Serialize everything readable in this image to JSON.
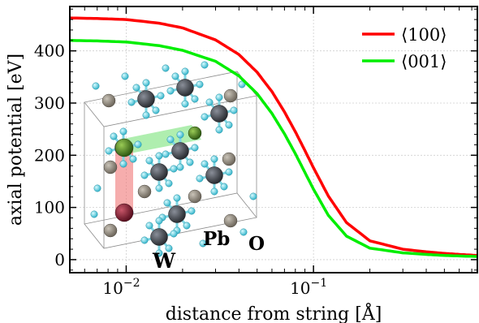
{
  "chart_data": {
    "type": "line",
    "xlabel": "distance from string [Å]",
    "ylabel": "axial potential [eV]",
    "xscale": "log",
    "xlim": [
      0.005,
      0.75
    ],
    "ylim": [
      -25,
      485
    ],
    "grid": true,
    "legend_position": "top-right",
    "x_ticks": [
      {
        "value": 0.01,
        "base": "10",
        "exp": "−2"
      },
      {
        "value": 0.1,
        "base": "10",
        "exp": "−1"
      }
    ],
    "y_ticks": [
      {
        "value": 0,
        "label": "0"
      },
      {
        "value": 100,
        "label": "100"
      },
      {
        "value": 200,
        "label": "200"
      },
      {
        "value": 300,
        "label": "300"
      },
      {
        "value": 400,
        "label": "400"
      }
    ],
    "series": [
      {
        "name": "⟨100⟩",
        "color": "#ff0000",
        "x": [
          0.005,
          0.007,
          0.01,
          0.015,
          0.02,
          0.03,
          0.04,
          0.05,
          0.06,
          0.07,
          0.08,
          0.09,
          0.1,
          0.12,
          0.15,
          0.2,
          0.3,
          0.4,
          0.5,
          0.6,
          0.75
        ],
        "y": [
          463,
          462,
          460,
          453,
          444,
          421,
          393,
          359,
          322,
          283,
          245,
          209,
          176,
          122,
          71,
          36,
          20,
          15,
          12,
          10,
          8
        ]
      },
      {
        "name": "⟨001⟩",
        "color": "#00ee00",
        "x": [
          0.005,
          0.007,
          0.01,
          0.015,
          0.02,
          0.03,
          0.04,
          0.05,
          0.06,
          0.07,
          0.08,
          0.09,
          0.1,
          0.12,
          0.15,
          0.2,
          0.3,
          0.4,
          0.5,
          0.6,
          0.75
        ],
        "y": [
          420,
          419,
          417,
          410,
          401,
          380,
          352,
          318,
          280,
          241,
          203,
          167,
          135,
          85,
          45,
          22,
          13,
          10,
          8,
          7,
          6
        ]
      }
    ],
    "inset": {
      "description_labels": [
        "Pb",
        "O",
        "W"
      ]
    }
  }
}
